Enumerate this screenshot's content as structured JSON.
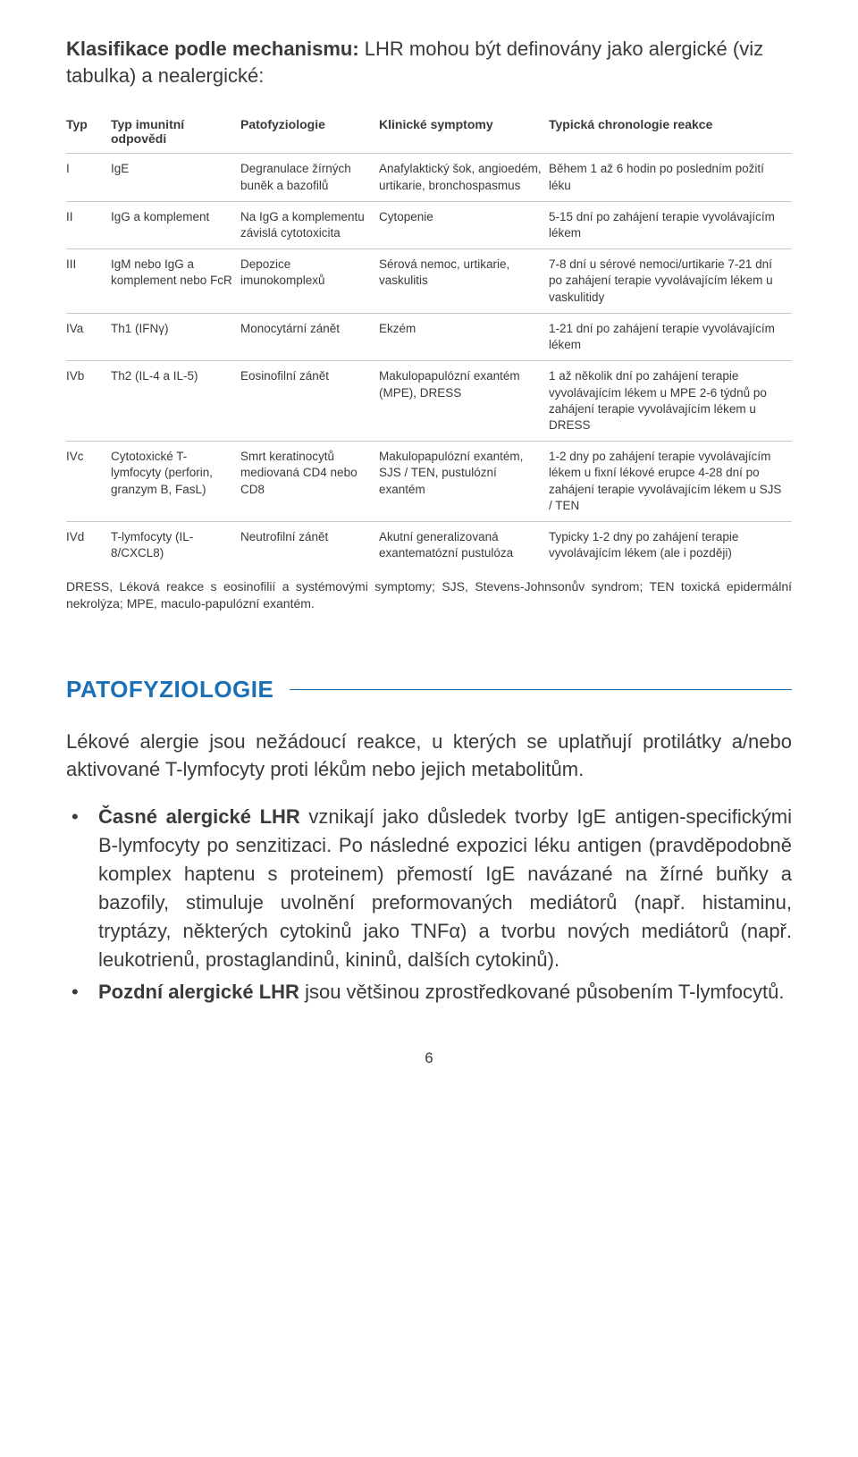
{
  "intro": {
    "bold_lead": "Klasifikace podle mechanismu:",
    "rest": " LHR mohou být definovány jako alergické (viz tabulka) a nealergické:"
  },
  "table": {
    "headers": {
      "typ": "Typ",
      "imunitni": "Typ imunitní odpovědi",
      "pato": "Patofyziologie",
      "klin": "Klinické symptomy",
      "chron": "Typická chronologie reakce"
    },
    "rows": [
      {
        "typ": "I",
        "imun": "IgE",
        "pato": "Degranulace žírných buněk a bazofilů",
        "klin": "Anafylaktický šok, angioedém, urtikarie, bronchospasmus",
        "chron": "Během 1 až 6 hodin po posledním požití léku"
      },
      {
        "typ": "II",
        "imun": "IgG a komplement",
        "pato": "Na IgG a komplementu závislá cytotoxicita",
        "klin": "Cytopenie",
        "chron": "5-15 dní po zahájení terapie vyvolávajícím lékem"
      },
      {
        "typ": "III",
        "imun": "IgM nebo IgG a komplement nebo FcR",
        "pato": "Depozice imunokomplexů",
        "klin": "Sérová nemoc, urtikarie, vaskulitis",
        "chron": "7-8 dní u sérové nemoci/urtikarie 7-21 dní po zahájení terapie vyvolávajícím lékem u vaskulitidy"
      },
      {
        "typ": "IVa",
        "imun": "Th1 (IFNγ)",
        "pato": "Monocytární zánět",
        "klin": "Ekzém",
        "chron": "1-21 dní po zahájení terapie vyvolávajícím lékem"
      },
      {
        "typ": "IVb",
        "imun": "Th2 (IL-4 a IL-5)",
        "pato": "Eosinofilní zánět",
        "klin": "Makulopapulózní exantém (MPE), DRESS",
        "chron": "1 až několik dní po zahájení terapie vyvolávajícím lékem u MPE 2-6 týdnů po zahájení terapie vyvolávajícím lékem u DRESS"
      },
      {
        "typ": "IVc",
        "imun": "Cytotoxické T-lymfocyty (perforin, granzym B, FasL)",
        "pato": "Smrt keratinocytů mediovaná CD4 nebo CD8",
        "klin": "Makulopapulózní exantém, SJS / TEN, pustulózní exantém",
        "chron": "1-2 dny po zahájení terapie vyvolávajícím lékem u fixní lékové erupce 4-28 dní po zahájení terapie vyvolávajícím lékem u SJS / TEN"
      },
      {
        "typ": "IVd",
        "imun": "T-lymfocyty (IL-8/CXCL8)",
        "pato": "Neutrofilní zánět",
        "klin": "Akutní generalizovaná exantematózní pustulóza",
        "chron": "Typicky 1-2 dny po zahájení terapie vyvolávajícím lékem (ale i později)"
      }
    ]
  },
  "footnote": "DRESS, Léková reakce s eosinofilií a systémovými symptomy; SJS, Stevens-Johnsonův syndrom; TEN toxická epidermální nekrolýza; MPE, maculo-papulózní exantém.",
  "section_title": "PATOFYZIOLOGIE",
  "para1": "Lékové alergie jsou nežádoucí reakce, u kterých se uplatňují protilátky a/nebo aktivované T-lymfocyty proti lékům nebo jejich metabolitům.",
  "bullets": [
    {
      "bold": "Časné alergické LHR",
      "rest": " vznikají jako důsledek tvorby IgE antigen-specifickými B-lymfocyty po senzitizaci. Po následné expozici léku antigen (pravděpodobně komplex haptenu s proteinem) přemostí IgE navázané na žírné buňky a bazofily, stimuluje uvolnění preformovaných mediátorů (např. histaminu, tryptázy, některých cytokinů jako TNFα) a tvorbu nových mediátorů (např. leukotrienů, prostaglandinů, kininů, dalších cytokinů)."
    },
    {
      "bold": " Pozdní alergické LHR",
      "rest": " jsou většinou zprostředkované působením T-lymfocytů."
    }
  ],
  "page_number": "6"
}
